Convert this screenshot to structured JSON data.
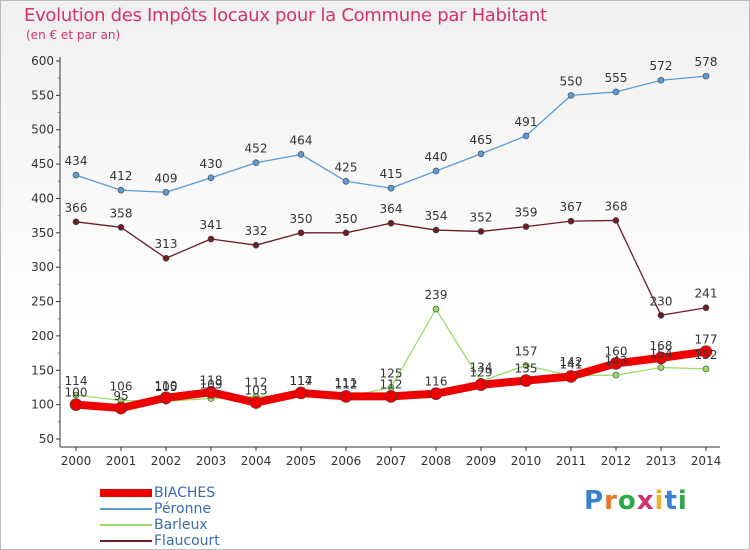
{
  "header": {
    "title": "Evolution des Impôts locaux pour la Commune par Habitant",
    "subtitle": "(en € et par an)"
  },
  "colors": {
    "title": "#d23369",
    "BIACHES": "#ee0000",
    "Peronne": "#5b9bd5",
    "Barleux": "#99dd66",
    "Flaucourt": "#6b1e24"
  },
  "logo": {
    "text": "Proxiti"
  },
  "chart_data": {
    "type": "line",
    "title": "Evolution des Impôts locaux pour la Commune par Habitant",
    "subtitle": "(en € et par an)",
    "x": [
      "2000",
      "2001",
      "2002",
      "2003",
      "2004",
      "2005",
      "2006",
      "2007",
      "2008",
      "2009",
      "2010",
      "2011",
      "2012",
      "2013",
      "2014"
    ],
    "ylim": [
      50,
      600
    ],
    "yticks": [
      50,
      100,
      150,
      200,
      250,
      300,
      350,
      400,
      450,
      500,
      550,
      600
    ],
    "grid": false,
    "legend_position": "bottom-left",
    "series": [
      {
        "name": "BIACHES",
        "color": "#ee0000",
        "values": [
          100,
          95,
          110,
          118,
          103,
          117,
          112,
          112,
          116,
          129,
          135,
          141,
          160,
          168,
          177
        ]
      },
      {
        "name": "Péronne",
        "color": "#5b9bd5",
        "values": [
          434,
          412,
          409,
          430,
          452,
          464,
          425,
          415,
          440,
          465,
          491,
          550,
          555,
          572,
          578
        ]
      },
      {
        "name": "Barleux",
        "color": "#99dd66",
        "values": [
          114,
          106,
          105,
          109,
          112,
          114,
          111,
          125,
          239,
          134,
          157,
          142,
          143,
          154,
          152
        ]
      },
      {
        "name": "Flaucourt",
        "color": "#6b1e24",
        "values": [
          366,
          358,
          313,
          341,
          332,
          350,
          350,
          364,
          354,
          352,
          359,
          367,
          368,
          230,
          241
        ]
      }
    ]
  }
}
